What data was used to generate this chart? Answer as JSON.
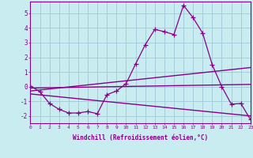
{
  "xlabel": "Windchill (Refroidissement éolien,°C)",
  "bg_color": "#c8ecf0",
  "grid_color": "#a0c8d8",
  "line_color": "#880088",
  "xlim": [
    0,
    23
  ],
  "ylim": [
    -2.5,
    5.8
  ],
  "yticks": [
    -2,
    -1,
    0,
    1,
    2,
    3,
    4,
    5
  ],
  "xticks": [
    0,
    1,
    2,
    3,
    4,
    5,
    6,
    7,
    8,
    9,
    10,
    11,
    12,
    13,
    14,
    15,
    16,
    17,
    18,
    19,
    20,
    21,
    22,
    23
  ],
  "main_x": [
    0,
    1,
    2,
    3,
    4,
    5,
    6,
    7,
    8,
    9,
    10,
    11,
    12,
    13,
    14,
    15,
    16,
    17,
    18,
    19,
    20,
    21,
    22,
    23
  ],
  "main_y": [
    0.05,
    -0.35,
    -1.15,
    -1.55,
    -1.8,
    -1.8,
    -1.7,
    -1.85,
    -0.55,
    -0.3,
    0.2,
    1.55,
    2.85,
    3.9,
    3.75,
    3.55,
    5.55,
    4.7,
    3.65,
    1.5,
    0.0,
    -1.2,
    -1.15,
    -2.25
  ],
  "line2_x": [
    0,
    23
  ],
  "line2_y": [
    -0.3,
    1.3
  ],
  "line3_x": [
    0,
    23
  ],
  "line3_y": [
    -0.1,
    0.15
  ],
  "line4_x": [
    0,
    23
  ],
  "line4_y": [
    -0.5,
    -2.0
  ],
  "figsize": [
    3.2,
    2.0
  ],
  "dpi": 100
}
